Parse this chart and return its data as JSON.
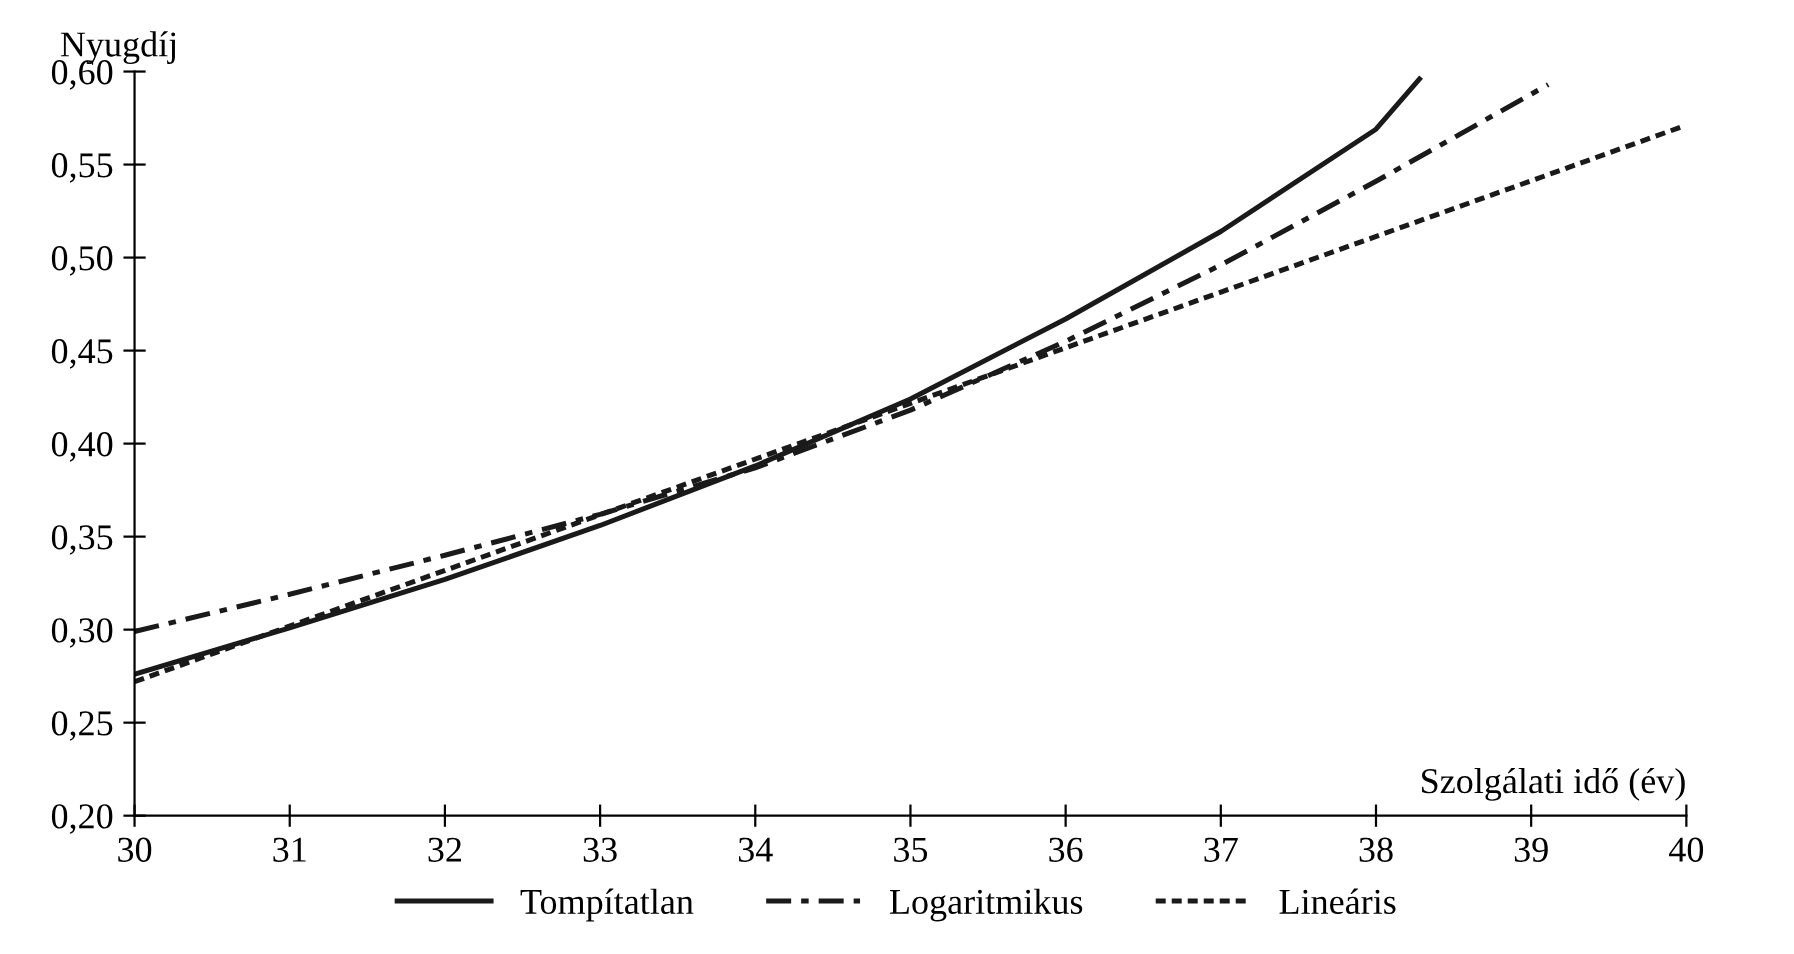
{
  "chart_data": {
    "type": "line",
    "ylabel": "Nyugdíj",
    "xlabel": "Szolgálati idő (év)",
    "xlim": [
      30,
      40
    ],
    "xticks": [
      30,
      31,
      32,
      33,
      34,
      35,
      36,
      37,
      38,
      39,
      40
    ],
    "ylim": [
      0.2,
      0.6
    ],
    "yticks": [
      {
        "value": 0.2,
        "label": "0,20"
      },
      {
        "value": 0.25,
        "label": "0,25"
      },
      {
        "value": 0.3,
        "label": "0,30"
      },
      {
        "value": 0.35,
        "label": "0,35"
      },
      {
        "value": 0.4,
        "label": "0,40"
      },
      {
        "value": 0.45,
        "label": "0,45"
      },
      {
        "value": 0.5,
        "label": "0,50"
      },
      {
        "value": 0.55,
        "label": "0,55"
      },
      {
        "value": 0.6,
        "label": "0,60"
      }
    ],
    "grid": false,
    "legend": "bottom",
    "marker": "none",
    "series": [
      {
        "name": "Tompítatlan",
        "color": "#1a1a1a",
        "line_style": "solid",
        "x": [
          30,
          31,
          32,
          33,
          34,
          35,
          36,
          37,
          38,
          38.28
        ],
        "values": [
          0.276,
          0.301,
          0.327,
          0.356,
          0.388,
          0.424,
          0.467,
          0.514,
          0.569,
          0.596
        ]
      },
      {
        "name": "Logaritmikus",
        "color": "#1a1a1a",
        "line_style": "dashdot",
        "x": [
          30,
          31,
          32,
          33,
          34,
          35,
          36,
          37,
          38,
          39.11
        ],
        "values": [
          0.299,
          0.319,
          0.34,
          0.362,
          0.387,
          0.418,
          0.455,
          0.496,
          0.541,
          0.593
        ]
      },
      {
        "name": "Lineáris",
        "color": "#1a1a1a",
        "line_style": "dotted",
        "x": [
          30,
          39.96
        ],
        "values": [
          0.272,
          0.57
        ]
      }
    ]
  }
}
